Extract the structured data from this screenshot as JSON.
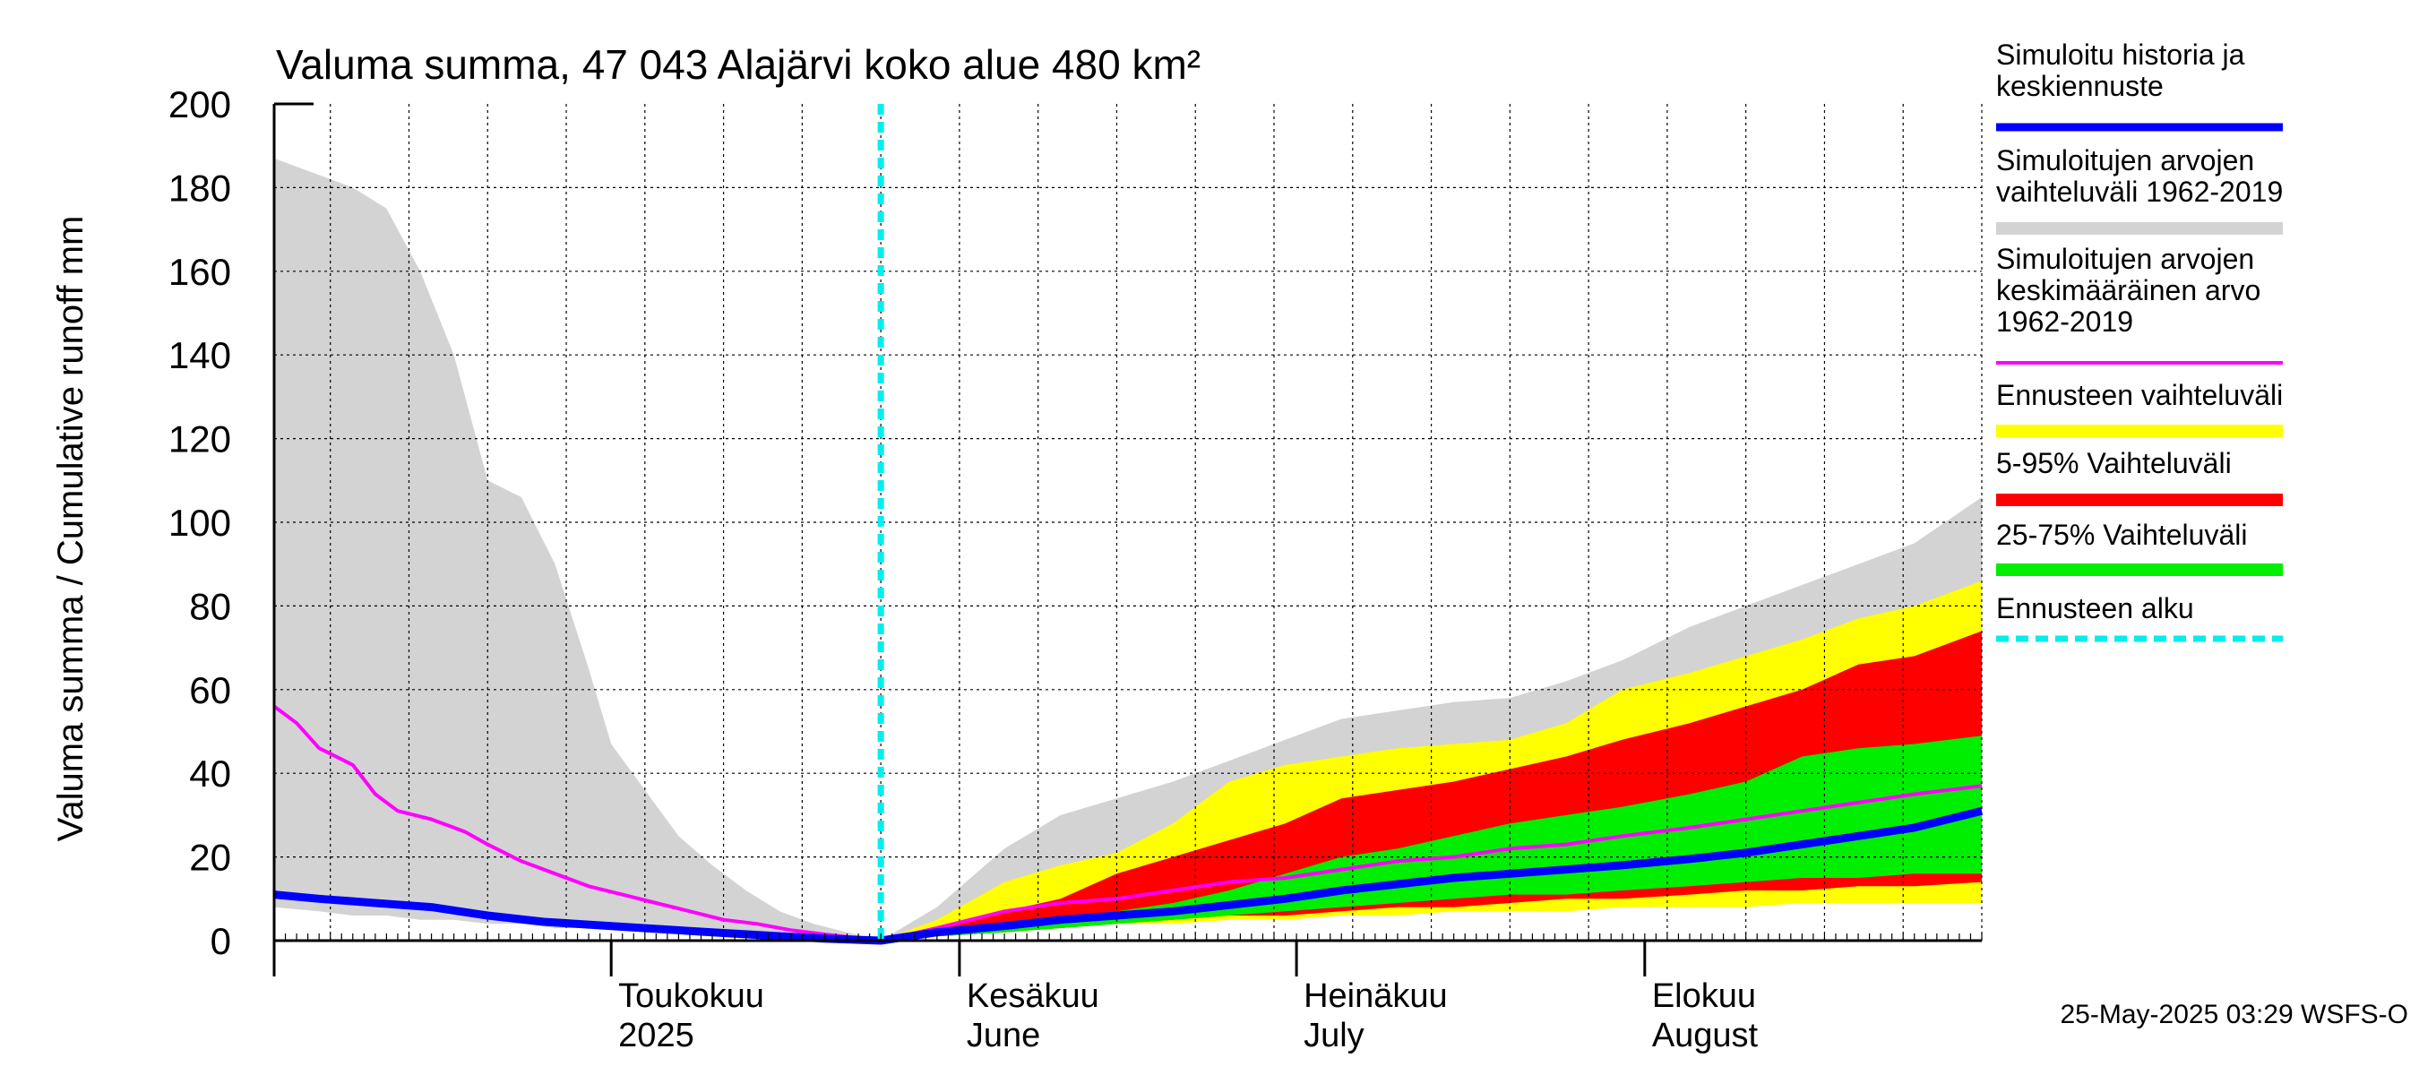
{
  "chart_data": {
    "type": "area",
    "title": "Valuma summa, 47 043 Alajärvi koko alue 480 km²",
    "ylabel": "Valuma summa / Cumulative runoff    mm",
    "ylim": [
      0,
      200
    ],
    "yticks": [
      0,
      20,
      40,
      60,
      80,
      100,
      120,
      140,
      160,
      180,
      200
    ],
    "x_range": [
      "2025-04-01",
      "2025-08-31"
    ],
    "month_labels": [
      {
        "date": "2025-05-01",
        "line1": "Toukokuu",
        "line2": "2025"
      },
      {
        "date": "2025-06-01",
        "line1": "Kesäkuu",
        "line2": "June"
      },
      {
        "date": "2025-07-01",
        "line1": "Heinäkuu",
        "line2": "July"
      },
      {
        "date": "2025-08-01",
        "line1": "Elokuu",
        "line2": "August"
      }
    ],
    "forecast_start": "2025-05-25",
    "legend": [
      {
        "label": "Simuloitu historia ja\nkeskiennuste",
        "color": "#0000ff",
        "style": "solid-thick"
      },
      {
        "label": "Simuloitujen arvojen\nvaihteluväli 1962-2019",
        "color": "#d3d3d3",
        "style": "band"
      },
      {
        "label": "Simuloitujen arvojen\nkeskimääräinen arvo\n   1962-2019",
        "color": "#ff00ff",
        "style": "line"
      },
      {
        "label": "Ennusteen vaihteluväli",
        "color": "#ffff00",
        "style": "band"
      },
      {
        "label": "5-95% Vaihteluväli",
        "color": "#ff0000",
        "style": "band"
      },
      {
        "label": "25-75% Vaihteluväli",
        "color": "#00ee00",
        "style": "band"
      },
      {
        "label": "Ennusteen alku",
        "color": "#00eeee",
        "style": "dashed"
      }
    ],
    "series": [
      {
        "name": "Simuloitujen arvojen vaihteluväli 1962-2019",
        "kind": "band",
        "color": "#d3d3d3",
        "x": [
          "2025-04-01",
          "2025-04-05",
          "2025-04-08",
          "2025-04-11",
          "2025-04-14",
          "2025-04-17",
          "2025-04-20",
          "2025-04-23",
          "2025-04-26",
          "2025-04-29",
          "2025-05-01",
          "2025-05-04",
          "2025-05-07",
          "2025-05-10",
          "2025-05-13",
          "2025-05-16",
          "2025-05-19",
          "2025-05-22",
          "2025-05-25",
          "2025-05-30",
          "2025-06-05",
          "2025-06-10",
          "2025-06-15",
          "2025-06-20",
          "2025-06-25",
          "2025-06-30",
          "2025-07-05",
          "2025-07-10",
          "2025-07-15",
          "2025-07-20",
          "2025-07-25",
          "2025-07-30",
          "2025-08-05",
          "2025-08-10",
          "2025-08-15",
          "2025-08-20",
          "2025-08-25",
          "2025-08-31"
        ],
        "upper": [
          187,
          183,
          180,
          175,
          160,
          140,
          110,
          106,
          90,
          65,
          47,
          36,
          25,
          18,
          12,
          7,
          4,
          2,
          0,
          8,
          22,
          30,
          34,
          38,
          43,
          48,
          53,
          55,
          57,
          58,
          62,
          67,
          75,
          80,
          85,
          90,
          95,
          106
        ],
        "lower": [
          8,
          7,
          6,
          6,
          5,
          5,
          4,
          4,
          3,
          3,
          3,
          2,
          2,
          1,
          1,
          0.5,
          0.3,
          0.1,
          0,
          1,
          2,
          3,
          4,
          5,
          5,
          6,
          6,
          7,
          7,
          7,
          8,
          8,
          9,
          9,
          10,
          10,
          11,
          12
        ]
      },
      {
        "name": "Ennusteen vaihteluväli",
        "kind": "band",
        "color": "#ffff00",
        "x": [
          "2025-05-25",
          "2025-05-30",
          "2025-06-05",
          "2025-06-10",
          "2025-06-15",
          "2025-06-20",
          "2025-06-25",
          "2025-06-30",
          "2025-07-05",
          "2025-07-10",
          "2025-07-15",
          "2025-07-20",
          "2025-07-25",
          "2025-07-30",
          "2025-08-05",
          "2025-08-10",
          "2025-08-15",
          "2025-08-20",
          "2025-08-25",
          "2025-08-31"
        ],
        "upper": [
          0,
          5,
          14,
          18,
          21,
          28,
          38,
          42,
          44,
          46,
          47,
          48,
          52,
          60,
          64,
          68,
          72,
          77,
          80,
          86
        ],
        "lower": [
          0,
          1,
          2,
          3,
          4,
          4,
          5,
          5,
          6,
          6,
          7,
          7,
          7,
          8,
          8,
          8,
          9,
          9,
          9,
          9
        ]
      },
      {
        "name": "5-95% Vaihteluväli",
        "kind": "band",
        "color": "#ff0000",
        "x": [
          "2025-05-25",
          "2025-05-30",
          "2025-06-05",
          "2025-06-10",
          "2025-06-15",
          "2025-06-20",
          "2025-06-25",
          "2025-06-30",
          "2025-07-05",
          "2025-07-10",
          "2025-07-15",
          "2025-07-20",
          "2025-07-25",
          "2025-07-30",
          "2025-08-05",
          "2025-08-10",
          "2025-08-15",
          "2025-08-20",
          "2025-08-25",
          "2025-08-31"
        ],
        "upper": [
          0,
          3,
          7,
          10,
          16,
          20,
          24,
          28,
          34,
          36,
          38,
          41,
          44,
          48,
          52,
          56,
          60,
          66,
          68,
          74
        ],
        "lower": [
          0,
          1,
          2,
          3,
          4,
          5,
          6,
          6,
          7,
          8,
          8,
          9,
          10,
          10,
          11,
          12,
          12,
          13,
          13,
          14
        ]
      },
      {
        "name": "25-75% Vaihteluväli",
        "kind": "band",
        "color": "#00ee00",
        "x": [
          "2025-05-25",
          "2025-05-30",
          "2025-06-05",
          "2025-06-10",
          "2025-06-15",
          "2025-06-20",
          "2025-06-25",
          "2025-06-30",
          "2025-07-05",
          "2025-07-10",
          "2025-07-15",
          "2025-07-20",
          "2025-07-25",
          "2025-07-30",
          "2025-08-05",
          "2025-08-10",
          "2025-08-15",
          "2025-08-20",
          "2025-08-25",
          "2025-08-31"
        ],
        "upper": [
          0,
          2,
          4,
          5,
          7,
          9,
          12,
          16,
          20,
          22,
          25,
          28,
          30,
          32,
          35,
          38,
          44,
          46,
          47,
          49
        ],
        "lower": [
          0,
          1,
          2,
          3,
          4,
          5,
          6,
          7,
          8,
          9,
          10,
          11,
          11,
          12,
          13,
          14,
          15,
          15,
          16,
          16
        ]
      },
      {
        "name": "Simuloitujen arvojen keskimääräinen arvo 1962-2019",
        "kind": "line",
        "color": "#ff00ff",
        "x": [
          "2025-04-01",
          "2025-04-03",
          "2025-04-05",
          "2025-04-08",
          "2025-04-10",
          "2025-04-12",
          "2025-04-15",
          "2025-04-18",
          "2025-04-20",
          "2025-04-23",
          "2025-04-26",
          "2025-04-29",
          "2025-05-02",
          "2025-05-05",
          "2025-05-08",
          "2025-05-11",
          "2025-05-14",
          "2025-05-17",
          "2025-05-20",
          "2025-05-25",
          "2025-05-30",
          "2025-06-05",
          "2025-06-10",
          "2025-06-15",
          "2025-06-20",
          "2025-06-25",
          "2025-06-30",
          "2025-07-05",
          "2025-07-10",
          "2025-07-15",
          "2025-07-20",
          "2025-07-25",
          "2025-07-30",
          "2025-08-05",
          "2025-08-10",
          "2025-08-15",
          "2025-08-20",
          "2025-08-25",
          "2025-08-31"
        ],
        "y": [
          56,
          52,
          46,
          42,
          35,
          31,
          29,
          26,
          23,
          19,
          16,
          13,
          11,
          9,
          7,
          5,
          4,
          2.5,
          1.5,
          0,
          3,
          7,
          9,
          10,
          12,
          14,
          15,
          17,
          19,
          20,
          22,
          23,
          25,
          27,
          29,
          31,
          33,
          35,
          37
        ]
      },
      {
        "name": "Simuloitu historia ja keskiennuste",
        "kind": "line",
        "color": "#0000ff",
        "x": [
          "2025-04-01",
          "2025-04-05",
          "2025-04-10",
          "2025-04-15",
          "2025-04-20",
          "2025-04-25",
          "2025-05-01",
          "2025-05-05",
          "2025-05-10",
          "2025-05-15",
          "2025-05-20",
          "2025-05-25",
          "2025-05-30",
          "2025-06-05",
          "2025-06-10",
          "2025-06-15",
          "2025-06-20",
          "2025-06-25",
          "2025-06-30",
          "2025-07-05",
          "2025-07-10",
          "2025-07-15",
          "2025-07-20",
          "2025-07-25",
          "2025-07-30",
          "2025-08-05",
          "2025-08-10",
          "2025-08-15",
          "2025-08-20",
          "2025-08-25",
          "2025-08-31"
        ],
        "y": [
          11,
          10,
          9,
          8,
          6,
          4.5,
          3.5,
          2.8,
          2,
          1.2,
          0.5,
          0,
          2,
          3.5,
          5,
          6,
          7,
          8.5,
          10,
          12,
          13.5,
          15,
          16,
          17,
          18,
          19.5,
          21,
          23,
          25,
          27,
          31
        ]
      }
    ]
  },
  "footer": {
    "timestamp": "25-May-2025 03:29 WSFS-O"
  }
}
